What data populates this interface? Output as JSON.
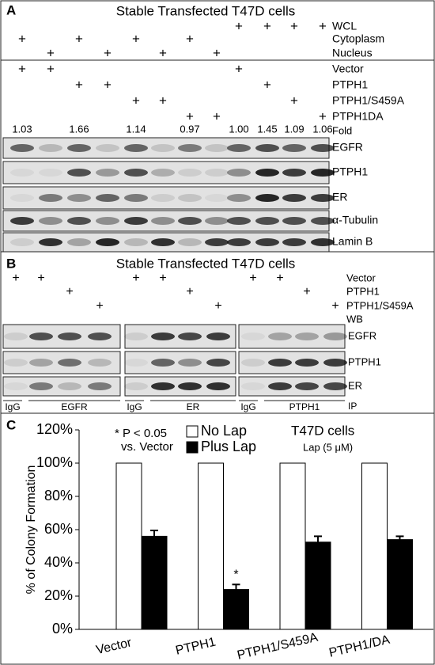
{
  "panel_a": {
    "label": "A",
    "title": "Stable Transfected T47D cells",
    "conditions": [
      {
        "label": "WCL",
        "marks": [
          null,
          null,
          null,
          null,
          null,
          null,
          null,
          null,
          "+",
          "+",
          "+",
          "+"
        ]
      },
      {
        "label": "Cytoplasm",
        "marks": [
          "+",
          null,
          "+",
          null,
          "+",
          null,
          "+",
          null,
          null,
          null,
          null,
          null
        ]
      },
      {
        "label": "Nucleus",
        "marks": [
          null,
          "+",
          null,
          "+",
          null,
          "+",
          null,
          "+",
          null,
          null,
          null,
          null
        ]
      },
      {
        "label": "Vector",
        "marks": [
          "+",
          "+",
          null,
          null,
          null,
          null,
          null,
          null,
          "+",
          null,
          null,
          null
        ]
      },
      {
        "label": "PTPH1",
        "marks": [
          null,
          null,
          "+",
          "+",
          null,
          null,
          null,
          null,
          null,
          "+",
          null,
          null
        ]
      },
      {
        "label": "PTPH1/S459A",
        "marks": [
          null,
          null,
          null,
          null,
          "+",
          "+",
          null,
          null,
          null,
          null,
          "+",
          null
        ]
      },
      {
        "label": "PTPH1DA",
        "marks": [
          null,
          null,
          null,
          null,
          null,
          null,
          "+",
          "+",
          null,
          null,
          null,
          "+"
        ]
      }
    ],
    "fold_label": "Fold",
    "fold": [
      "1.03",
      null,
      "1.66",
      null,
      "1.14",
      null,
      "0.97",
      null,
      "1.00",
      "1.45",
      "1.09",
      "1.06"
    ],
    "blots": [
      "EGFR",
      "PTPH1",
      "ER",
      "α-Tubulin",
      "Lamin B"
    ]
  },
  "panel_b": {
    "label": "B",
    "title": "Stable Transfected T47D cells",
    "conditions": [
      {
        "label": "Vector",
        "marks": [
          "+",
          "+",
          null,
          null,
          "+",
          "+",
          null,
          null,
          "+",
          "+",
          null,
          null
        ]
      },
      {
        "label": "PTPH1",
        "marks": [
          null,
          null,
          "+",
          null,
          null,
          null,
          "+",
          null,
          null,
          null,
          "+",
          null
        ]
      },
      {
        "label": "PTPH1/S459A",
        "marks": [
          null,
          null,
          null,
          "+",
          null,
          null,
          null,
          "+",
          null,
          null,
          null,
          "+"
        ]
      }
    ],
    "wb_label": "WB",
    "blots": [
      "EGFR",
      "PTPH1",
      "ER"
    ],
    "ip_groups": [
      {
        "control": "IgG",
        "target": "EGFR"
      },
      {
        "control": "IgG",
        "target": "ER"
      },
      {
        "control": "IgG",
        "target": "PTPH1"
      }
    ],
    "ip_label": "IP"
  },
  "chart_data": {
    "type": "bar",
    "label": "C",
    "categories": [
      "Vector",
      "PTPH1",
      "PTPH1/S459A",
      "PTPH1/DA"
    ],
    "series": [
      {
        "name": "No Lap",
        "color": "#ffffff",
        "values": [
          100,
          100,
          100,
          100
        ]
      },
      {
        "name": "Plus Lap",
        "color": "#000000",
        "values": [
          56,
          24,
          52.5,
          54
        ],
        "errors": [
          3.5,
          3,
          3.5,
          2
        ],
        "significance": [
          null,
          "*",
          null,
          null
        ]
      }
    ],
    "ylabel": "% of Colony Formation",
    "ylim": [
      0,
      120
    ],
    "yticks": [
      {
        "value": 0,
        "label": "0%"
      },
      {
        "value": 20,
        "label": "20%"
      },
      {
        "value": 40,
        "label": "40%"
      },
      {
        "value": 60,
        "label": "60%"
      },
      {
        "value": 80,
        "label": "80%"
      },
      {
        "value": 100,
        "label": "100%"
      },
      {
        "value": 120,
        "label": "120%"
      }
    ],
    "annotations": [
      "* P < 0.05",
      "vs. Vector",
      "T47D cells",
      "Lap (5 μM)"
    ]
  }
}
